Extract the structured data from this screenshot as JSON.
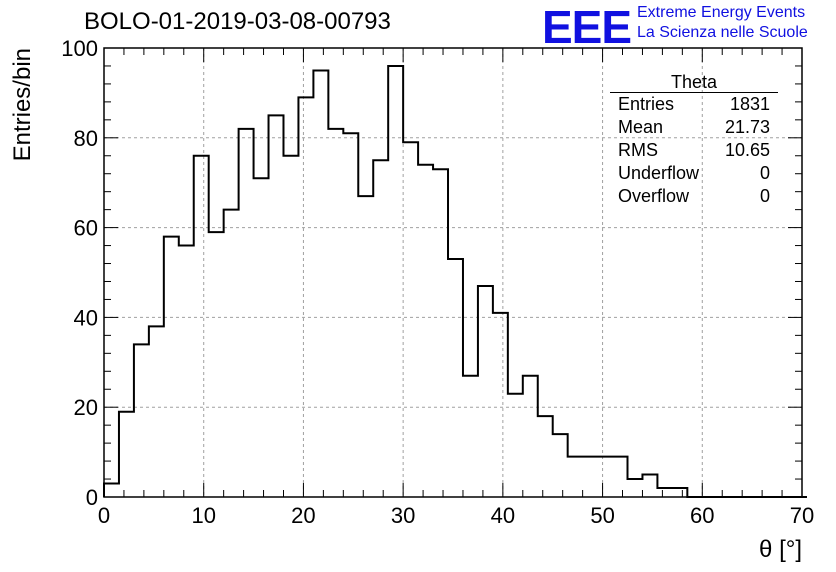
{
  "header": {
    "title": "BOLO-01-2019-03-08-00793",
    "logo_text": "EEE",
    "org_line1": "Extreme Energy Events",
    "org_line2": "La Scienza nelle Scuole"
  },
  "stats": {
    "title": "Theta",
    "rows": [
      {
        "label": "Entries",
        "value": "1831"
      },
      {
        "label": "Mean",
        "value": "21.73"
      },
      {
        "label": "RMS",
        "value": "10.65"
      },
      {
        "label": "Underflow",
        "value": "0"
      },
      {
        "label": "Overflow",
        "value": "0"
      }
    ]
  },
  "colors": {
    "accent": "#1010e0",
    "line": "#000000",
    "grid": "#a0a0a0"
  },
  "chart_data": {
    "type": "bar",
    "histogram": true,
    "bin_edges_start": 0,
    "bin_width": 1.5,
    "values": [
      3,
      19,
      34,
      38,
      58,
      56,
      76,
      59,
      64,
      82,
      71,
      85,
      76,
      89,
      95,
      82,
      81,
      67,
      75,
      96,
      79,
      74,
      73,
      53,
      27,
      47,
      41,
      23,
      27,
      18,
      14,
      9,
      9,
      9,
      9,
      4,
      5,
      2,
      2,
      0,
      0,
      0,
      0,
      0,
      0,
      0,
      0
    ],
    "xlabel": "θ [°]",
    "ylabel": "Entries/bin",
    "xlim": [
      0,
      70
    ],
    "ylim": [
      0,
      100
    ],
    "x_ticks": [
      "0",
      "10",
      "20",
      "30",
      "40",
      "50",
      "60",
      "70"
    ],
    "y_ticks": [
      "0",
      "20",
      "40",
      "60",
      "80",
      "100"
    ],
    "grid": true,
    "legend": "top-right stats box"
  }
}
